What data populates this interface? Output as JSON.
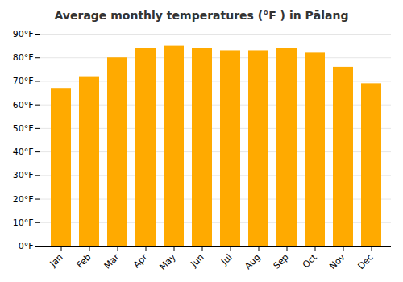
{
  "chart_data": {
    "type": "bar",
    "title": "Average monthly temperatures (°F ) in Pālang",
    "categories": [
      "Jan",
      "Feb",
      "Mar",
      "Apr",
      "May",
      "Jun",
      "Jul",
      "Aug",
      "Sep",
      "Oct",
      "Nov",
      "Dec"
    ],
    "values": [
      67,
      72,
      80,
      84,
      85,
      84,
      83,
      83,
      84,
      82,
      76,
      69
    ],
    "color": "#FFAA00",
    "ylim": [
      0,
      90
    ],
    "yticks": [
      {
        "value": 0,
        "label": "0°F"
      },
      {
        "value": 10,
        "label": "10°F"
      },
      {
        "value": 20,
        "label": "20°F"
      },
      {
        "value": 30,
        "label": "30°F"
      },
      {
        "value": 40,
        "label": "40°F"
      },
      {
        "value": 50,
        "label": "50°F"
      },
      {
        "value": 60,
        "label": "60°F"
      },
      {
        "value": 70,
        "label": "70°F"
      },
      {
        "value": 80,
        "label": "80°F"
      },
      {
        "value": 90,
        "label": "90°F"
      }
    ],
    "grid": true
  }
}
